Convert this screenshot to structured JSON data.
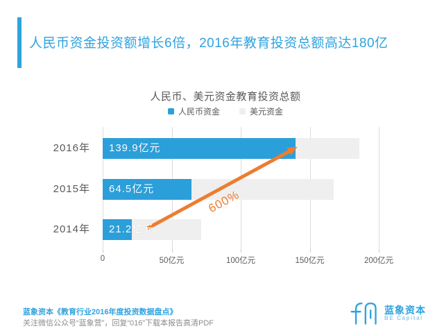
{
  "header": {
    "title": "人民币资金投资额增长6倍，2016年教育投资总额高达180亿"
  },
  "chart_data": {
    "type": "bar",
    "orientation": "horizontal",
    "stacked": true,
    "title": "人民币、美元资金教育投资总额",
    "categories": [
      "2016年",
      "2015年",
      "2014年"
    ],
    "series": [
      {
        "name": "人民币资金",
        "color": "#2b9fda",
        "values": [
          139.9,
          64.5,
          21.2
        ],
        "data_labels": [
          "139.9亿元",
          "64.5亿元",
          "21.2亿元"
        ]
      },
      {
        "name": "美元资金",
        "color": "#efefef",
        "values": [
          46,
          103,
          50
        ],
        "estimated": true
      }
    ],
    "x_ticks": [
      {
        "value": 0,
        "label": "0"
      },
      {
        "value": 50,
        "label": "50亿元"
      },
      {
        "value": 100,
        "label": "100亿元"
      },
      {
        "value": 150,
        "label": "150亿元"
      },
      {
        "value": 200,
        "label": "200亿元"
      }
    ],
    "xlim": [
      0,
      207
    ],
    "grid": "vertical",
    "legend_position": "top",
    "annotation": {
      "text": "600%"
    }
  },
  "footer": {
    "source_line": "蓝象资本《教育行业2016年度投资数据盘点》",
    "note_line": "关注微信公众号“蓝象营”，回复“016”下载本报告高清PDF"
  },
  "logo": {
    "name_cn": "蓝象资本",
    "name_en": "BE Capital"
  },
  "colors": {
    "accent_blue": "#2fa3df",
    "bar_blue": "#2b9fda",
    "bar_gray": "#efefef",
    "text_gray": "#595959",
    "muted_gray": "#8c8c8c",
    "orange": "#ed7d31",
    "gridline": "#dcdcdc"
  }
}
